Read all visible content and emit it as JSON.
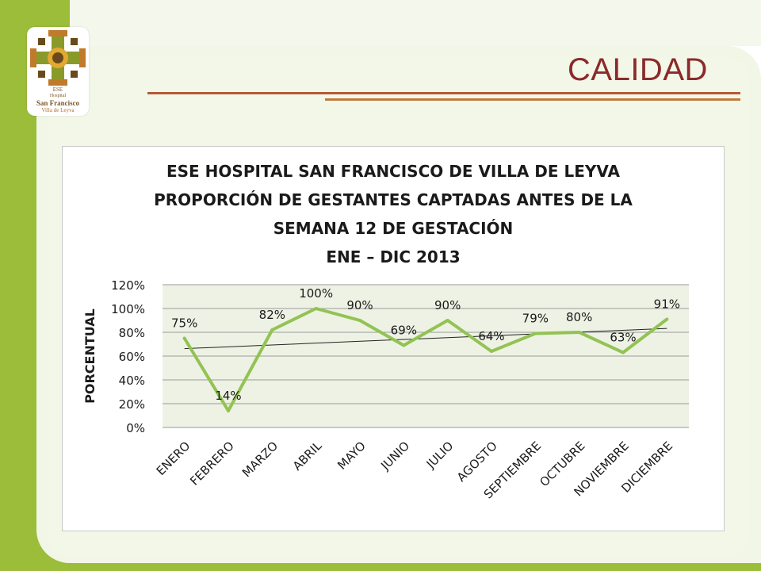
{
  "slide": {
    "title": "CALIDAD",
    "logo": {
      "line1": "ESE",
      "line2": "Hospital",
      "line3": "San Francisco",
      "line4": "Villa de Leyva"
    }
  },
  "colors": {
    "frame_green": "#9bbd3a",
    "series_line": "#92c353",
    "title_red": "#8b2a2a",
    "plot_area": "#eef2e4"
  },
  "chart_data": {
    "type": "line",
    "title_lines": [
      "ESE HOSPITAL SAN FRANCISCO DE VILLA DE LEYVA",
      "PROPORCIÓN DE GESTANTES CAPTADAS ANTES DE LA",
      "SEMANA 12 DE GESTACIÓN",
      "ENE – DIC 2013"
    ],
    "ylabel": "PORCENTUAL",
    "xlabel": "",
    "categories": [
      "ENERO",
      "FEBRERO",
      "MARZO",
      "ABRIL",
      "MAYO",
      "JUNIO",
      "JULIO",
      "AGOSTO",
      "SEPTIEMBRE",
      "OCTUBRE",
      "NOVIEMBRE",
      "DICIEMBRE"
    ],
    "values": [
      75,
      14,
      82,
      100,
      90,
      69,
      90,
      64,
      79,
      80,
      63,
      91
    ],
    "data_labels": [
      "75%",
      "14%",
      "82%",
      "100%",
      "90%",
      "69%",
      "90%",
      "64%",
      "79%",
      "80%",
      "63%",
      "91%"
    ],
    "ylim": [
      0,
      120
    ],
    "yticks": [
      0,
      20,
      40,
      60,
      80,
      100,
      120
    ],
    "ytick_labels": [
      "0%",
      "20%",
      "40%",
      "60%",
      "80%",
      "100%",
      "120%"
    ],
    "trendline": "linear",
    "grid": true,
    "legend": "none"
  }
}
